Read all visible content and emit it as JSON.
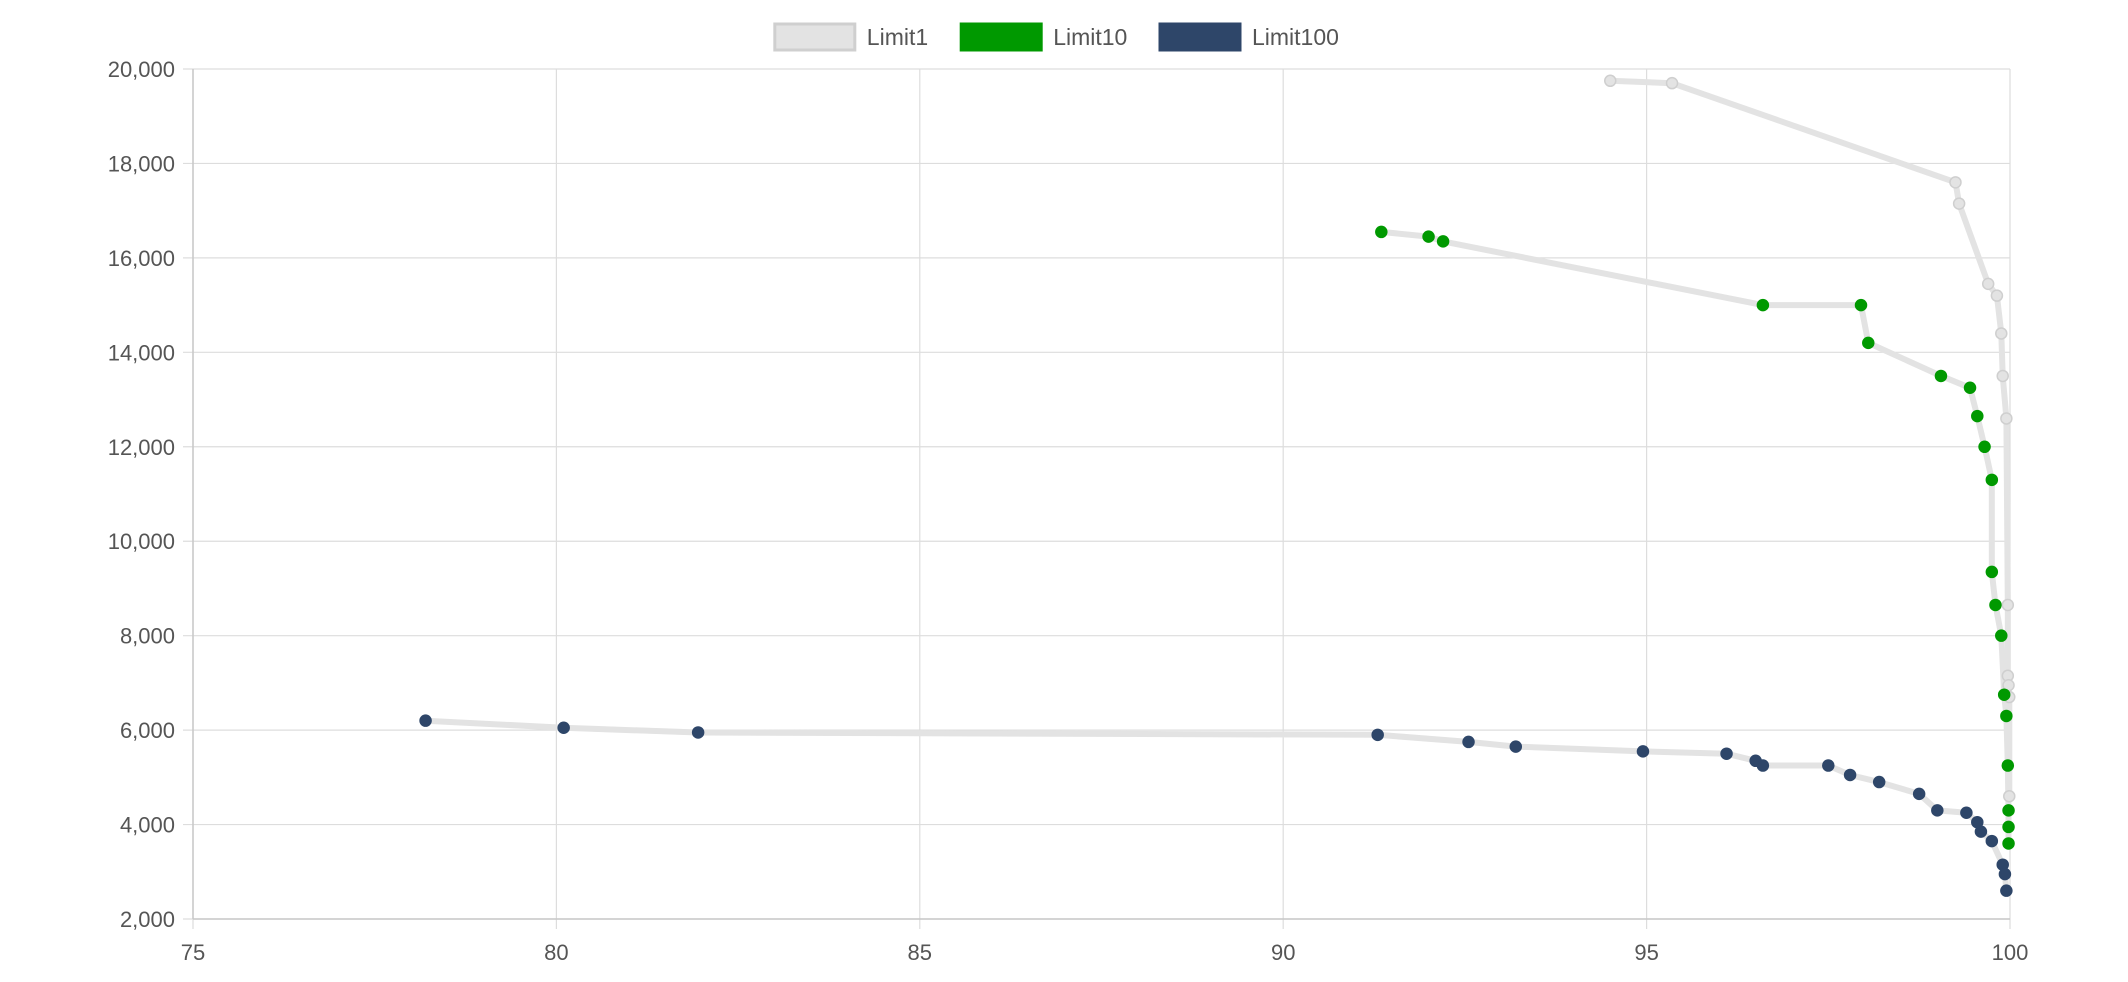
{
  "chart_data": {
    "type": "scatter",
    "title": "",
    "xlabel": "",
    "ylabel": "",
    "xlim": [
      75,
      100
    ],
    "ylim": [
      2000,
      20000
    ],
    "x_ticks": [
      75,
      80,
      85,
      90,
      95,
      100
    ],
    "y_ticks": [
      2000,
      4000,
      6000,
      8000,
      10000,
      12000,
      14000,
      16000,
      18000,
      20000
    ],
    "x_tick_labels": [
      "75",
      "80",
      "85",
      "90",
      "95",
      "100"
    ],
    "y_tick_labels": [
      "2,000",
      "4,000",
      "6,000",
      "8,000",
      "10,000",
      "12,000",
      "14,000",
      "16,000",
      "18,000",
      "20,000"
    ],
    "grid": true,
    "legend_position": "top-center",
    "line_color": "#e3e3e3",
    "series": [
      {
        "name": "Limit1",
        "color": "#e3e3e3",
        "border": "#cfcfcf",
        "points": [
          [
            94.5,
            19750
          ],
          [
            95.35,
            19700
          ],
          [
            99.25,
            17600
          ],
          [
            99.3,
            17150
          ],
          [
            99.7,
            15450
          ],
          [
            99.82,
            15200
          ],
          [
            99.88,
            14400
          ],
          [
            99.9,
            13500
          ],
          [
            99.95,
            12600
          ],
          [
            99.97,
            8650
          ],
          [
            99.97,
            7150
          ],
          [
            99.98,
            6950
          ],
          [
            99.99,
            6700
          ],
          [
            99.99,
            4600
          ]
        ]
      },
      {
        "name": "Limit10",
        "color": "#009900",
        "border": "#009900",
        "points": [
          [
            91.35,
            16550
          ],
          [
            92.0,
            16450
          ],
          [
            92.2,
            16350
          ],
          [
            96.6,
            15000
          ],
          [
            97.95,
            15000
          ],
          [
            98.05,
            14200
          ],
          [
            99.05,
            13500
          ],
          [
            99.45,
            13250
          ],
          [
            99.55,
            12650
          ],
          [
            99.65,
            12000
          ],
          [
            99.75,
            11300
          ],
          [
            99.75,
            9350
          ],
          [
            99.8,
            8650
          ],
          [
            99.88,
            8000
          ],
          [
            99.92,
            6750
          ],
          [
            99.95,
            6300
          ],
          [
            99.97,
            5250
          ],
          [
            99.98,
            4300
          ],
          [
            99.98,
            3950
          ],
          [
            99.98,
            3600
          ]
        ]
      },
      {
        "name": "Limit100",
        "color": "#2e4669",
        "border": "#2e4669",
        "points": [
          [
            78.2,
            6200
          ],
          [
            80.1,
            6050
          ],
          [
            81.95,
            5950
          ],
          [
            91.3,
            5900
          ],
          [
            92.55,
            5750
          ],
          [
            93.2,
            5650
          ],
          [
            94.95,
            5550
          ],
          [
            96.1,
            5500
          ],
          [
            96.5,
            5350
          ],
          [
            96.6,
            5250
          ],
          [
            97.5,
            5250
          ],
          [
            97.8,
            5050
          ],
          [
            98.2,
            4900
          ],
          [
            98.75,
            4650
          ],
          [
            99.0,
            4300
          ],
          [
            99.4,
            4250
          ],
          [
            99.55,
            4050
          ],
          [
            99.6,
            3850
          ],
          [
            99.75,
            3650
          ],
          [
            99.9,
            3150
          ],
          [
            99.93,
            2950
          ],
          [
            99.95,
            2600
          ]
        ]
      }
    ]
  }
}
